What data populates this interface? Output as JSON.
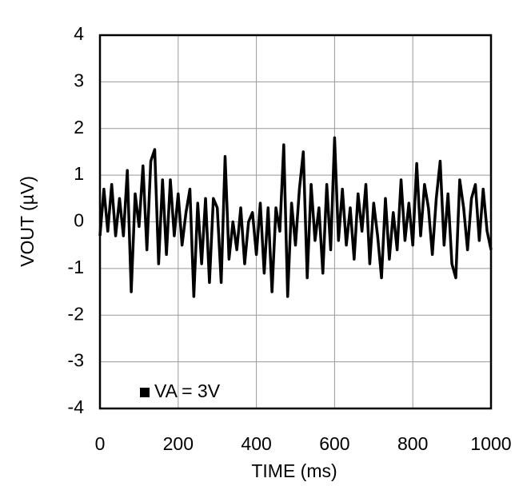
{
  "chart_data": {
    "type": "line",
    "xlabel": "TIME (ms)",
    "ylabel": "VOUT (µV)",
    "x": [
      0,
      10,
      20,
      30,
      40,
      50,
      60,
      70,
      80,
      90,
      100,
      110,
      120,
      130,
      140,
      150,
      160,
      170,
      180,
      190,
      200,
      210,
      220,
      230,
      240,
      250,
      260,
      270,
      280,
      290,
      300,
      310,
      320,
      330,
      340,
      350,
      360,
      370,
      380,
      390,
      400,
      410,
      420,
      430,
      440,
      450,
      460,
      470,
      480,
      490,
      500,
      510,
      520,
      530,
      540,
      550,
      560,
      570,
      580,
      590,
      600,
      610,
      620,
      630,
      640,
      650,
      660,
      670,
      680,
      690,
      700,
      710,
      720,
      730,
      740,
      750,
      760,
      770,
      780,
      790,
      800,
      810,
      820,
      830,
      840,
      850,
      860,
      870,
      880,
      890,
      900,
      910,
      920,
      930,
      940,
      950,
      960,
      970,
      980,
      990,
      1000
    ],
    "series": [
      {
        "name": "VA = 3V",
        "color": "#000000",
        "values": [
          -0.3,
          0.7,
          -0.2,
          0.8,
          -0.3,
          0.5,
          -0.3,
          1.1,
          -1.5,
          0.6,
          -0.1,
          1.2,
          -0.6,
          1.3,
          1.55,
          -0.9,
          0.9,
          -0.7,
          0.9,
          -0.3,
          0.6,
          -0.5,
          0.2,
          0.7,
          -1.6,
          0.4,
          -0.9,
          0.5,
          -1.3,
          0.5,
          0.3,
          -1.3,
          1.4,
          -0.8,
          0.0,
          -0.6,
          0.3,
          -0.9,
          0.0,
          0.2,
          -0.7,
          0.4,
          -1.1,
          0.3,
          -1.5,
          0.3,
          -0.2,
          1.65,
          -1.6,
          0.4,
          -0.5,
          0.7,
          1.5,
          -1.2,
          0.8,
          -0.4,
          0.3,
          -1.1,
          0.8,
          -0.6,
          1.8,
          -0.4,
          0.7,
          -0.5,
          0.3,
          -0.8,
          0.6,
          -0.2,
          0.8,
          -0.9,
          0.4,
          -0.3,
          -1.2,
          0.5,
          -0.8,
          0.2,
          -0.6,
          0.9,
          -0.4,
          0.4,
          -0.5,
          1.25,
          -0.3,
          0.8,
          0.3,
          -0.7,
          0.5,
          1.3,
          -0.5,
          0.6,
          -0.9,
          -1.2,
          0.9,
          0.3,
          -0.6,
          0.5,
          0.8,
          -0.4,
          0.7,
          -0.2,
          -0.6
        ]
      }
    ],
    "xlim": [
      0,
      1000
    ],
    "xticks": [
      0,
      200,
      400,
      600,
      800,
      1000
    ],
    "ylim": [
      -4,
      4
    ],
    "yticks": [
      -4,
      -3,
      -2,
      -1,
      0,
      1,
      2,
      3,
      4
    ],
    "grid": true,
    "legend": "lower left"
  }
}
